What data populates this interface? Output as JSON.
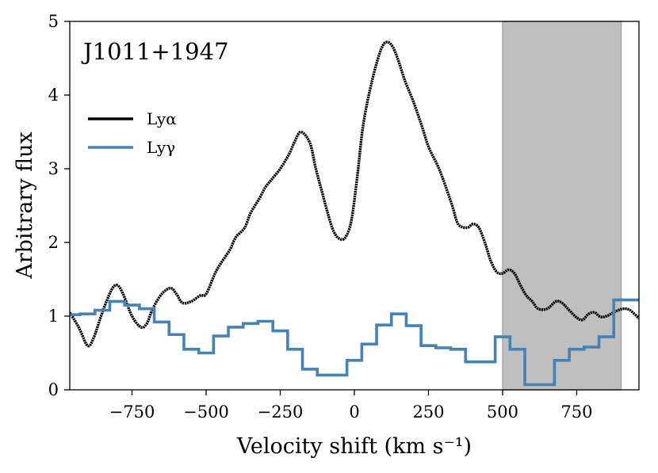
{
  "chart_data": {
    "type": "line",
    "title": "J1011+1947",
    "xlabel": "Velocity shift (km s⁻¹)",
    "ylabel": "Arbitrary flux",
    "xlim": [
      -960,
      960
    ],
    "ylim": [
      0,
      5
    ],
    "xticks": [
      -750,
      -500,
      -250,
      0,
      250,
      500,
      750
    ],
    "xtick_labels": [
      "−750",
      "−500",
      "−250",
      "0",
      "250",
      "500",
      "750"
    ],
    "yticks": [
      0,
      1,
      2,
      3,
      4,
      5
    ],
    "ytick_labels": [
      "0",
      "1",
      "2",
      "3",
      "4",
      "5"
    ],
    "legend_position": "upper-left",
    "shaded_region": {
      "x": [
        500,
        900
      ],
      "color": "#bfbfbf"
    },
    "series": [
      {
        "name": "Lyα",
        "color": "#000000",
        "style": "smooth",
        "x": [
          -960,
          -930,
          -900,
          -880,
          -850,
          -820,
          -800,
          -780,
          -750,
          -720,
          -700,
          -680,
          -650,
          -620,
          -600,
          -580,
          -550,
          -520,
          -500,
          -470,
          -450,
          -420,
          -400,
          -370,
          -350,
          -320,
          -300,
          -280,
          -250,
          -220,
          -200,
          -180,
          -150,
          -130,
          -110,
          -90,
          -70,
          -50,
          -30,
          -10,
          10,
          30,
          60,
          90,
          110,
          130,
          150,
          170,
          200,
          230,
          250,
          280,
          300,
          330,
          350,
          380,
          400,
          420,
          440,
          460,
          480,
          500,
          520,
          540,
          560,
          580,
          600,
          620,
          650,
          680,
          700,
          720,
          750,
          770,
          790,
          810,
          830,
          850,
          870,
          890,
          910,
          930,
          960
        ],
        "y": [
          1.05,
          0.85,
          0.6,
          0.7,
          1.05,
          1.35,
          1.42,
          1.3,
          1.0,
          0.85,
          0.9,
          1.1,
          1.3,
          1.38,
          1.3,
          1.18,
          1.2,
          1.28,
          1.3,
          1.58,
          1.72,
          1.9,
          2.07,
          2.2,
          2.4,
          2.6,
          2.75,
          2.85,
          3.0,
          3.2,
          3.38,
          3.5,
          3.35,
          3.0,
          2.7,
          2.4,
          2.15,
          2.05,
          2.07,
          2.3,
          2.9,
          3.6,
          4.2,
          4.62,
          4.72,
          4.65,
          4.45,
          4.2,
          3.9,
          3.55,
          3.3,
          3.05,
          2.85,
          2.5,
          2.25,
          2.2,
          2.25,
          2.2,
          2.0,
          1.75,
          1.6,
          1.58,
          1.63,
          1.58,
          1.42,
          1.28,
          1.2,
          1.1,
          1.1,
          1.2,
          1.18,
          1.1,
          0.98,
          0.95,
          1.03,
          1.05,
          0.99,
          1.0,
          1.04,
          1.08,
          1.1,
          1.08,
          0.97
        ]
      },
      {
        "name": "Lyγ",
        "color": "#4682b4",
        "style": "steps-mid",
        "x": [
          -950,
          -900,
          -850,
          -800,
          -750,
          -700,
          -650,
          -600,
          -550,
          -500,
          -450,
          -400,
          -350,
          -300,
          -250,
          -200,
          -150,
          -100,
          -50,
          0,
          50,
          100,
          150,
          200,
          250,
          300,
          350,
          400,
          450,
          500,
          550,
          600,
          650,
          700,
          750,
          800,
          850,
          900,
          950
        ],
        "y": [
          1.02,
          1.03,
          1.08,
          1.2,
          1.15,
          1.1,
          0.92,
          0.75,
          0.55,
          0.5,
          0.73,
          0.85,
          0.9,
          0.93,
          0.8,
          0.55,
          0.28,
          0.2,
          0.2,
          0.4,
          0.62,
          0.88,
          1.03,
          0.87,
          0.6,
          0.57,
          0.55,
          0.38,
          0.38,
          0.72,
          0.55,
          0.07,
          0.07,
          0.4,
          0.55,
          0.58,
          0.72,
          1.22,
          1.22
        ]
      }
    ]
  }
}
